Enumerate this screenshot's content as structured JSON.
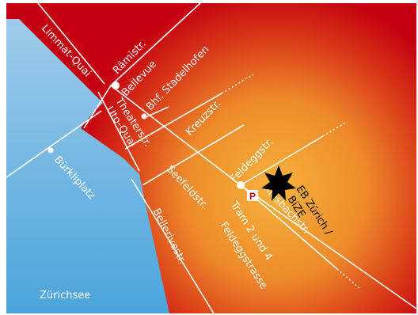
{
  "map": {
    "colors": {
      "background": "#c40010",
      "glow_center": "#f6b33d",
      "glow_edge": "#c40010",
      "water": "#9fcbea",
      "water_deep": "#4ba4dc",
      "streets": "#ffffff",
      "marker": "#000000"
    },
    "street_labels": {
      "limmat_quai": "Limmat-Quai",
      "raemistr": "Rämistr.",
      "bellevue": "Bellevue",
      "bhf_stadelhofen": "Bhf. Stadelhofen",
      "theaterstr": "Theaterstr.",
      "uto_quai": "Uto-Quai",
      "kreuzstr": "Kreuzstr.",
      "buerkliplatz": "Bürkliplatz",
      "seefeldstr": "Seefeldstr.",
      "feldeggstr": "Feldeggstr.",
      "riesbachstr": "Riesbachstr.",
      "bellerivestr": "Bellerivestr.",
      "tram_line1": "Tram 2 und 4",
      "tram_line2": "Feldeggstrasse"
    },
    "lake_label": "Zürichsee",
    "destination": {
      "line1": "EB Zürich /",
      "line2": "BiZE",
      "icon": "star-icon"
    },
    "parking": {
      "symbol": "P",
      "icon": "parking-icon"
    }
  }
}
